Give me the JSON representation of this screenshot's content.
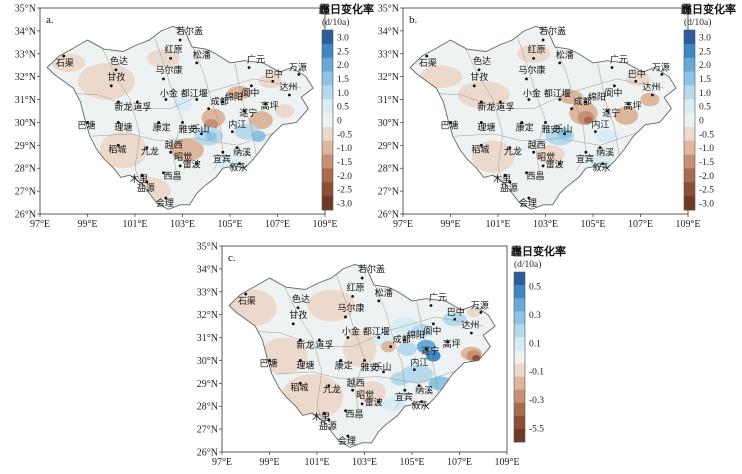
{
  "colorbar_title": "霾日变化率",
  "colorbar_unit": "(d/10a)",
  "x_ticks": [
    "97°E",
    "99°E",
    "101°E",
    "103°E",
    "105°E",
    "107°E",
    "109°E"
  ],
  "y_ticks": [
    "26°N",
    "27°N",
    "28°N",
    "29°N",
    "30°N",
    "31°N",
    "32°N",
    "33°N",
    "34°N",
    "35°N"
  ],
  "cities": [
    "若尔盖",
    "石渠",
    "色达",
    "红原",
    "松潘",
    "广元",
    "万源",
    "甘孜",
    "马尔康",
    "都江堰",
    "绵阳",
    "阆中",
    "巴中",
    "达州",
    "新龙",
    "道孚",
    "小金",
    "成都",
    "遂宁",
    "高坪",
    "巴塘",
    "理塘",
    "康定",
    "雅安",
    "乐山",
    "内江",
    "稻城",
    "九龙",
    "越西",
    "宜宾",
    "纳溪",
    "昭觉",
    "雷波",
    "叙永",
    "木里",
    "西昌",
    "盐源",
    "会理"
  ],
  "panels": [
    {
      "label": "a.",
      "colorbar_ticks": [
        "3.0",
        "2.5",
        "2.0",
        "1.5",
        "1.0",
        "0.5",
        "0",
        "-0.5",
        "-1.0",
        "-1.5",
        "-2.0",
        "-2.5",
        "-3.0"
      ]
    },
    {
      "label": "b.",
      "colorbar_ticks": [
        "3.0",
        "2.5",
        "2.0",
        "1.5",
        "1.0",
        "0.5",
        "0",
        "-0.5",
        "-1.0",
        "-1.5",
        "-2.0",
        "-2.5",
        "-3.0"
      ]
    },
    {
      "label": "c.",
      "colorbar_ticks": [
        "0.5",
        "0.3",
        "0.1",
        "-0.1",
        "-0.3",
        "-5.5"
      ]
    }
  ],
  "colors": {
    "pos": [
      "#2a5d9a",
      "#3f86c4",
      "#67a9d6",
      "#8ec4e3",
      "#b6d9ec",
      "#d8ecf4"
    ],
    "zero": "#eef2f2",
    "neg": [
      "#ecd9cc",
      "#ddb69e",
      "#c78f73",
      "#a86b4f",
      "#8b4f36",
      "#6d3a25"
    ]
  }
}
